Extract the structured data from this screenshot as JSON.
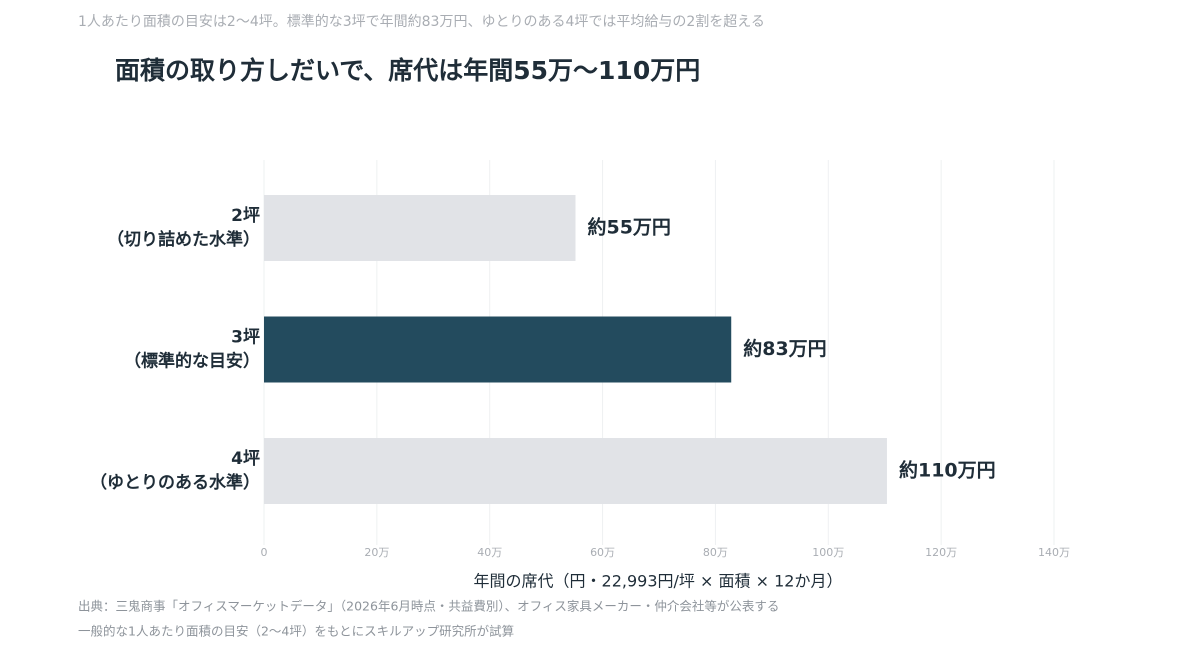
{
  "chart_data": {
    "type": "barh",
    "subtitle": "1人あたり面積の目安は2〜4坪。標準的な3坪で年間約83万円、ゆとりのある4坪では平均給与の2割を超える",
    "title": "面積の取り方しだいで、席代は年間55万〜110万円",
    "categories": [
      [
        "2坪",
        "（切り詰めた水準）"
      ],
      [
        "3坪",
        "（標準的な目安）"
      ],
      [
        "4坪",
        "（ゆとりのある水準）"
      ]
    ],
    "values": [
      55.2,
      82.8,
      110.4
    ],
    "value_labels": [
      "約55万円",
      "約83万円",
      "約110万円"
    ],
    "colors": [
      "#e1e3e7",
      "#234b5e",
      "#e1e3e7"
    ],
    "xlim": [
      0,
      140
    ],
    "xticks": [
      0,
      {
        "value": 20,
        "label": "20万"
      },
      {
        "value": 40,
        "label": "40万"
      },
      {
        "value": 60,
        "label": "60万"
      },
      {
        "value": 80,
        "label": "80万"
      },
      {
        "value": 100,
        "label": "100万"
      },
      {
        "value": 120,
        "label": "120万"
      },
      {
        "value": 140,
        "label": "140万"
      }
    ],
    "x_label": "年間の席代（円・22,993円/坪 × 面積 × 12か月）",
    "grid": true,
    "source": [
      "出典：三鬼商事「オフィスマーケットデータ」（2026年6月時点・共益費別）、オフィス家具メーカー・仲介会社等が公表する",
      "一般的な1人あたり面積の目安（2〜4坪）をもとにスキルアップ研究所が試算"
    ]
  }
}
